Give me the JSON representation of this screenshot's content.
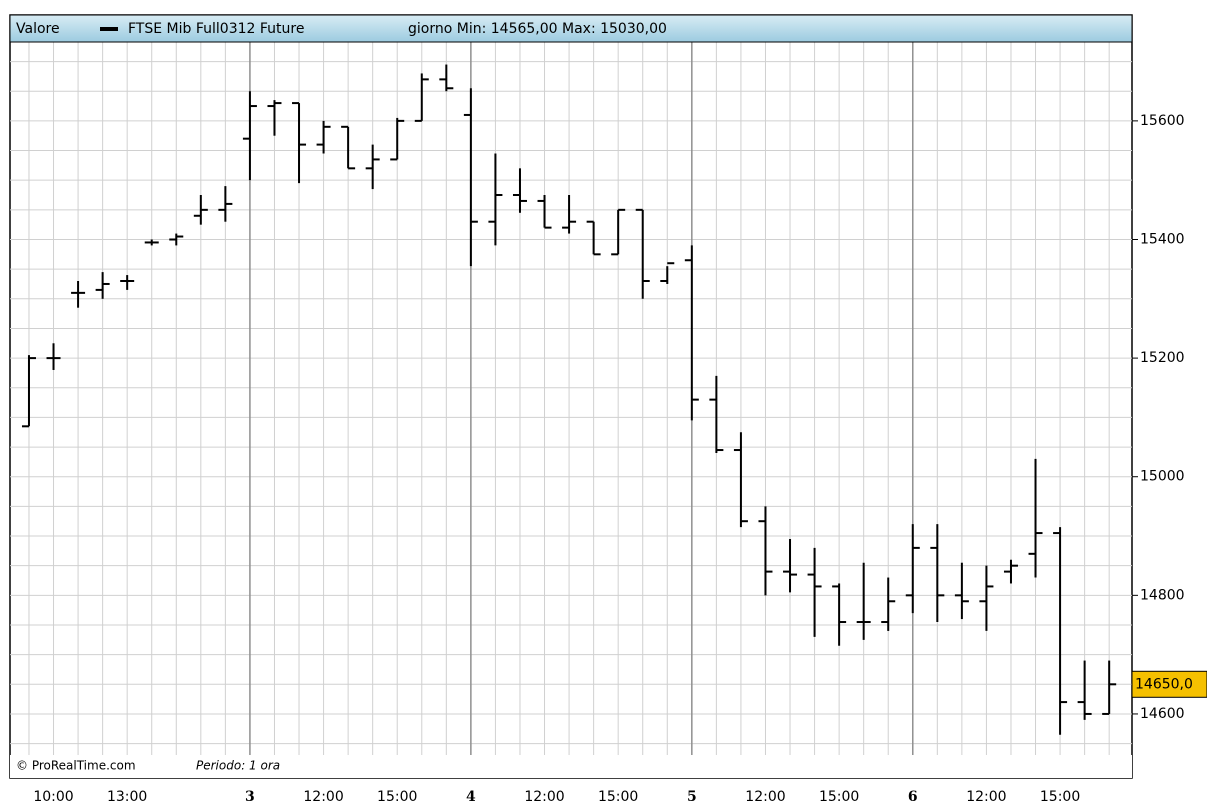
{
  "chart_data": {
    "type": "ohlc",
    "legend_label": "Valore",
    "title": "FTSE Mib Full0312 Future",
    "subtitle": "giorno Min: 14565,00 Max: 15030,00",
    "credit": "© ProRealTime.com",
    "period": "Periodo: 1 ora",
    "color": "#000000",
    "categories": [
      null,
      "10:00",
      null,
      null,
      "13:00",
      null,
      null,
      null,
      null,
      "3",
      null,
      null,
      "12:00",
      null,
      null,
      "15:00",
      null,
      null,
      "4",
      null,
      null,
      "12:00",
      null,
      null,
      "15:00",
      null,
      null,
      "5",
      null,
      null,
      "12:00",
      null,
      null,
      "15:00",
      null,
      null,
      "6",
      null,
      null,
      "12:00",
      null,
      null,
      "15:00",
      null,
      null
    ],
    "day_starts": [
      9,
      18,
      27,
      36
    ],
    "open": [
      15085,
      15200,
      15310,
      15315,
      15330,
      15395,
      15400,
      15440,
      15450,
      15570,
      15625,
      15630,
      15560,
      15590,
      15520,
      15535,
      15600,
      15670,
      15610,
      15430,
      15475,
      15465,
      15420,
      15430,
      15375,
      15450,
      15330,
      15365,
      15130,
      15045,
      14925,
      14840,
      14835,
      14815,
      14755,
      14755,
      14800,
      14880,
      14800,
      14790,
      14840,
      14870,
      14905,
      14620,
      14600
    ],
    "high": [
      15205,
      15225,
      15330,
      15345,
      15340,
      15400,
      15410,
      15475,
      15490,
      15650,
      15635,
      15630,
      15600,
      15590,
      15560,
      15605,
      15680,
      15695,
      15655,
      15545,
      15520,
      15475,
      15475,
      15430,
      15450,
      15450,
      15355,
      15390,
      15170,
      15075,
      14950,
      14895,
      14880,
      14820,
      14855,
      14830,
      14920,
      14920,
      14855,
      14850,
      14860,
      15030,
      14915,
      14690,
      14690
    ],
    "low": [
      15085,
      15180,
      15285,
      15300,
      15315,
      15390,
      15390,
      15425,
      15430,
      15500,
      15575,
      15495,
      15545,
      15520,
      15485,
      15535,
      15600,
      15650,
      15355,
      15390,
      15445,
      15420,
      15410,
      15375,
      15375,
      15300,
      15325,
      15095,
      15040,
      14915,
      14800,
      14805,
      14730,
      14715,
      14725,
      14740,
      14770,
      14755,
      14760,
      14740,
      14820,
      14830,
      14565,
      14590,
      14600
    ],
    "close": [
      15200,
      15200,
      15310,
      15325,
      15330,
      15395,
      15405,
      15450,
      15460,
      15625,
      15630,
      15560,
      15590,
      15520,
      15535,
      15600,
      15670,
      15655,
      15430,
      15475,
      15465,
      15420,
      15430,
      15375,
      15450,
      15330,
      15360,
      15130,
      15045,
      14925,
      14840,
      14835,
      14815,
      14755,
      14755,
      14790,
      14880,
      14800,
      14790,
      14815,
      14850,
      14905,
      14620,
      14600,
      14650
    ],
    "ylim": [
      14492,
      15733
    ],
    "yticks": [
      14600,
      14800,
      15000,
      15200,
      15400,
      15600
    ],
    "ygrid": [
      14500,
      14550,
      14600,
      14650,
      14700,
      14750,
      14800,
      14850,
      14900,
      14950,
      15000,
      15050,
      15100,
      15150,
      15200,
      15250,
      15300,
      15350,
      15400,
      15450,
      15500,
      15550,
      15600,
      15650,
      15700
    ],
    "last_price": {
      "value": 14650,
      "label": "14650,0"
    },
    "last_color": "#f5c000"
  }
}
